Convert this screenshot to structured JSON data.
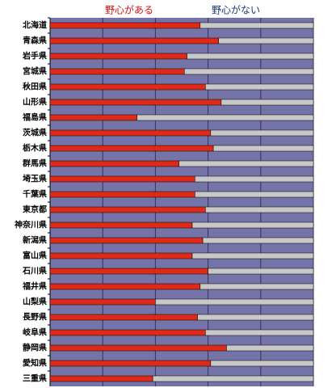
{
  "chart_data": {
    "type": "stacked_barh",
    "categories": [
      "北海道",
      "青森県",
      "岩手県",
      "宮城県",
      "秋田県",
      "山形県",
      "福島県",
      "茨城県",
      "栃木県",
      "群馬県",
      "埼玉県",
      "千葉県",
      "東京都",
      "神奈川県",
      "新潟県",
      "富山県",
      "石川県",
      "福井県",
      "山梨県",
      "長野県",
      "岐阜県",
      "静岡県",
      "愛知県",
      "三重県"
    ],
    "series": [
      {
        "name": "野心がある",
        "color": "#e02a18",
        "values": [
          57,
          64,
          52,
          51,
          59,
          65,
          33,
          61,
          62,
          49,
          55,
          55,
          59,
          54,
          58,
          54,
          60,
          57,
          40,
          56,
          59,
          67,
          61,
          39
        ]
      },
      {
        "name": "野心がない",
        "color": "#c8c8c8",
        "values": [
          43,
          36,
          48,
          49,
          41,
          35,
          67,
          39,
          38,
          51,
          45,
          45,
          41,
          46,
          42,
          46,
          40,
          43,
          60,
          44,
          41,
          33,
          39,
          61
        ]
      }
    ],
    "legend_colors": [
      "#d01010",
      "#1a3a7a"
    ],
    "xlim": [
      0,
      100
    ],
    "xticks": [
      0,
      20,
      40,
      60,
      80,
      100
    ],
    "grid": true
  }
}
